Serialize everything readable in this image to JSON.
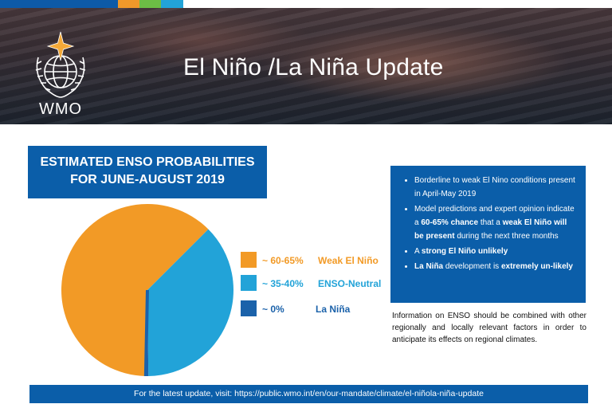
{
  "header": {
    "top_bar_colors": [
      "#0d5aa7",
      "#f0982a",
      "#6cbd45",
      "#22a3d8",
      "#ffffff"
    ],
    "title": "El Niño /La Niña Update",
    "logo_text": "WMO"
  },
  "chart_data": {
    "type": "pie",
    "title": "ESTIMATED ENSO PROBABILITIES",
    "subtitle": "FOR JUNE-AUGUST 2019",
    "slices": [
      {
        "label": "Weak El Niño",
        "value_label": "~ 60-65%",
        "value": 62.5,
        "color": "#f29a26",
        "text_color": "#f29a26"
      },
      {
        "label": "ENSO-Neutral",
        "value_label": "~ 35-40%",
        "value": 37.5,
        "color": "#22a3d8",
        "text_color": "#22a3d8"
      },
      {
        "label": "La Niña",
        "value_label": "~ 0%",
        "value": 0.5,
        "color": "#1b62aa",
        "text_color": "#1b62aa"
      }
    ],
    "legend_position": "right"
  },
  "info": {
    "bullets": [
      [
        {
          "t": "Borderline to weak El Nino conditions present in April-May 2019",
          "b": false
        }
      ],
      [
        {
          "t": "Model predictions and expert opinion indicate a ",
          "b": false
        },
        {
          "t": "60-65% chance",
          "b": true
        },
        {
          "t": " that a ",
          "b": false
        },
        {
          "t": "weak El Niño will be present",
          "b": true
        },
        {
          "t": " during the next three months",
          "b": false
        }
      ],
      [
        {
          "t": "A ",
          "b": false
        },
        {
          "t": "strong El Niño unlikely",
          "b": true
        }
      ],
      [
        {
          "t": "La Niña",
          "b": true
        },
        {
          "t": " development is ",
          "b": false
        },
        {
          "t": "extremely un-likely",
          "b": true
        }
      ]
    ],
    "note": "Information on ENSO should be combined with other regionally and locally relevant factors in order to anticipate its effects on regional climates."
  },
  "footer": {
    "text": "For the latest update, visit: https://public.wmo.int/en/our-mandate/climate/el-niñola-niña-update"
  }
}
